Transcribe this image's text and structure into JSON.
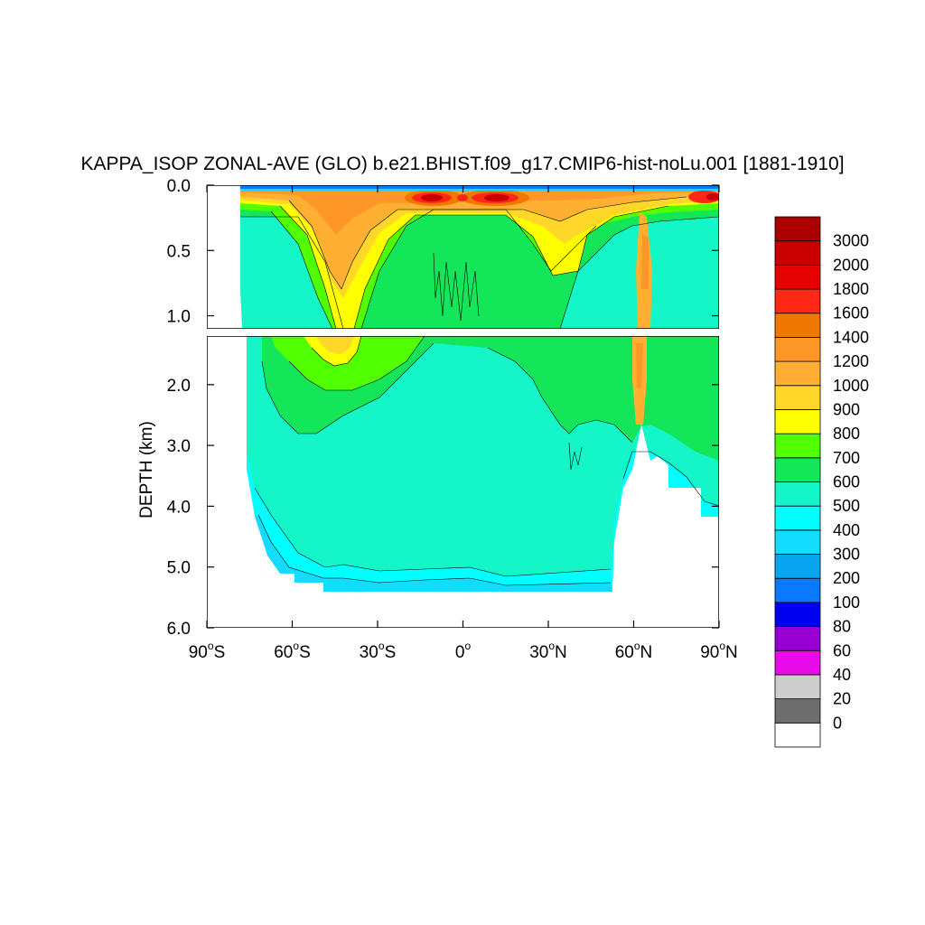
{
  "chart_data": {
    "type": "contour",
    "title": "KAPPA_ISOP ZONAL-AVE (GLO) b.e21.BHIST.f09_g17.CMIP6-hist-noLu.001 [1881-1910]",
    "ylabel": "DEPTH (km)",
    "xlabel": "",
    "x_range": [
      -90,
      90
    ],
    "x_ticks": [
      {
        "value": -90,
        "deg": "90",
        "hemi": "S"
      },
      {
        "value": -60,
        "deg": "60",
        "hemi": "S"
      },
      {
        "value": -30,
        "deg": "30",
        "hemi": "S"
      },
      {
        "value": 0,
        "deg": "0",
        "hemi": ""
      },
      {
        "value": 30,
        "deg": "30",
        "hemi": "N"
      },
      {
        "value": 60,
        "deg": "60",
        "hemi": "N"
      },
      {
        "value": 90,
        "deg": "90",
        "hemi": "N"
      }
    ],
    "upper_panel": {
      "depth_range": [
        0.0,
        1.1
      ],
      "y_ticks": [
        {
          "value": 0.0,
          "label": "0.0"
        },
        {
          "value": 0.5,
          "label": "0.5"
        },
        {
          "value": 1.0,
          "label": "1.0"
        }
      ]
    },
    "lower_panel": {
      "depth_range": [
        1.2,
        6.0
      ],
      "y_ticks": [
        {
          "value": 2.0,
          "label": "2.0"
        },
        {
          "value": 3.0,
          "label": "3.0"
        },
        {
          "value": 4.0,
          "label": "4.0"
        },
        {
          "value": 5.0,
          "label": "5.0"
        },
        {
          "value": 6.0,
          "label": "6.0"
        }
      ]
    },
    "colorbar": {
      "levels": [
        "0",
        "20",
        "40",
        "60",
        "80",
        "100",
        "200",
        "300",
        "400",
        "500",
        "600",
        "700",
        "800",
        "900",
        "1000",
        "1200",
        "1400",
        "1600",
        "1800",
        "2000",
        "3000"
      ],
      "colors": [
        "#ffffff",
        "#6e6e6e",
        "#cdcdcd",
        "#e80ae8",
        "#9600d2",
        "#0000f0",
        "#0a78ff",
        "#0aa5f0",
        "#14dcff",
        "#00ffff",
        "#14f5c8",
        "#14e65a",
        "#50ff00",
        "#ffff00",
        "#ffd728",
        "#ffaf32",
        "#ff9628",
        "#f07800",
        "#ff2814",
        "#e60000",
        "#c80000",
        "#aa0000"
      ]
    }
  }
}
